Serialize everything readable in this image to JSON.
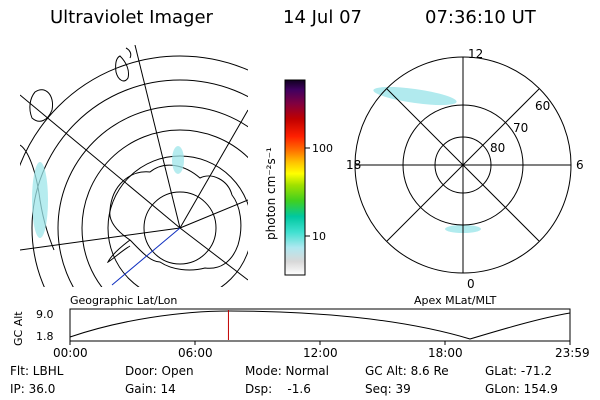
{
  "header": {
    "title": "Ultraviolet Imager",
    "date": "14 Jul 07",
    "time": "07:36:10 UT"
  },
  "colorbar": {
    "label": "photon cm⁻²s⁻¹",
    "tick_labels": [
      "100",
      "10"
    ],
    "colors": [
      "#ffffff",
      "#d8d8d8",
      "#b0e8f0",
      "#40e0d0",
      "#00c8a0",
      "#40d020",
      "#a0e000",
      "#ffff00",
      "#ffc000",
      "#ff7000",
      "#ff2000",
      "#c00000",
      "#800040",
      "#400060",
      "#100020"
    ]
  },
  "polar_plot": {
    "mlt_labels": {
      "top": "12",
      "right": "6",
      "bottom": "0",
      "left": "18"
    },
    "lat_labels": [
      "60",
      "70",
      "80"
    ]
  },
  "map_caption": "Geographic Lat/Lon",
  "polar_caption": "Apex MLat/MLT",
  "altitude_panel": {
    "ylabel": "GC Alt",
    "y_ticks": [
      "9.0",
      "1.8"
    ],
    "x_ticks": [
      "00:00",
      "06:00",
      "12:00",
      "18:00",
      "23:59"
    ],
    "marker_color": "#c00000",
    "marker_time": "07:36"
  },
  "status": {
    "flt": "Flt: LBHL",
    "ip": "IP: 36.0",
    "door": "Door: Open",
    "gain": "Gain: 14",
    "mode": "Mode: Normal",
    "dsp": "Dsp:    -1.6",
    "gc_alt": "GC Alt: 8.6 Re",
    "seq": "Seq: 39",
    "glat": "GLat: -71.2",
    "glon": "GLon: 154.9"
  }
}
